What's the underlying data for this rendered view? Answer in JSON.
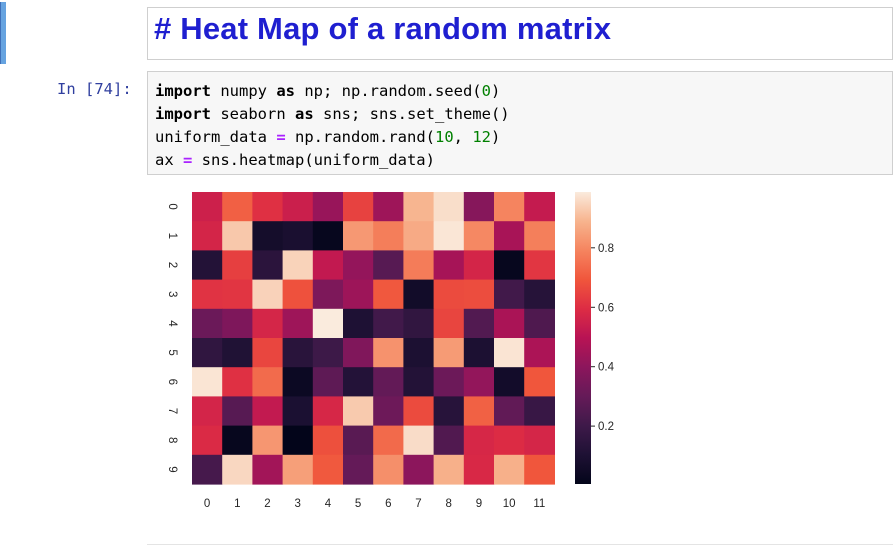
{
  "markdown_cell": {
    "heading": "# Heat Map of a random matrix"
  },
  "code_cell": {
    "prompt": "In [74]:",
    "lines": [
      [
        {
          "t": "import",
          "c": "kw2"
        },
        {
          "t": " numpy ",
          "c": ""
        },
        {
          "t": "as",
          "c": "kw2"
        },
        {
          "t": " np; np.random.seed(",
          "c": ""
        },
        {
          "t": "0",
          "c": "num"
        },
        {
          "t": ")",
          "c": ""
        }
      ],
      [
        {
          "t": "import",
          "c": "kw2"
        },
        {
          "t": " seaborn ",
          "c": ""
        },
        {
          "t": "as",
          "c": "kw2"
        },
        {
          "t": " sns; sns.set_theme()",
          "c": ""
        }
      ],
      [
        {
          "t": "uniform_data ",
          "c": ""
        },
        {
          "t": "=",
          "c": "op"
        },
        {
          "t": " np.random.rand(",
          "c": ""
        },
        {
          "t": "10",
          "c": "num"
        },
        {
          "t": ", ",
          "c": ""
        },
        {
          "t": "12",
          "c": "num"
        },
        {
          "t": ")",
          "c": ""
        }
      ],
      [
        {
          "t": "ax ",
          "c": ""
        },
        {
          "t": "=",
          "c": "op"
        },
        {
          "t": " sns.heatmap(uniform_data)",
          "c": ""
        }
      ]
    ]
  },
  "chart_data": {
    "type": "heatmap",
    "title": "",
    "xlabel": "",
    "ylabel": "",
    "x_ticks": [
      "0",
      "1",
      "2",
      "3",
      "4",
      "5",
      "6",
      "7",
      "8",
      "9",
      "10",
      "11"
    ],
    "y_ticks": [
      "0",
      "1",
      "2",
      "3",
      "4",
      "5",
      "6",
      "7",
      "8",
      "9"
    ],
    "values": [
      [
        0.549,
        0.715,
        0.603,
        0.545,
        0.424,
        0.646,
        0.438,
        0.892,
        0.964,
        0.383,
        0.792,
        0.529
      ],
      [
        0.568,
        0.926,
        0.071,
        0.087,
        0.02,
        0.833,
        0.778,
        0.87,
        0.979,
        0.799,
        0.461,
        0.781
      ],
      [
        0.118,
        0.64,
        0.143,
        0.945,
        0.522,
        0.415,
        0.265,
        0.774,
        0.456,
        0.568,
        0.019,
        0.618
      ],
      [
        0.612,
        0.617,
        0.944,
        0.682,
        0.36,
        0.437,
        0.698,
        0.06,
        0.667,
        0.671,
        0.21,
        0.129
      ],
      [
        0.315,
        0.364,
        0.57,
        0.439,
        0.988,
        0.102,
        0.209,
        0.161,
        0.653,
        0.253,
        0.466,
        0.244
      ],
      [
        0.159,
        0.11,
        0.656,
        0.138,
        0.197,
        0.369,
        0.821,
        0.097,
        0.838,
        0.096,
        0.976,
        0.469
      ],
      [
        0.977,
        0.605,
        0.739,
        0.039,
        0.283,
        0.12,
        0.296,
        0.119,
        0.318,
        0.414,
        0.064,
        0.692
      ],
      [
        0.567,
        0.265,
        0.523,
        0.094,
        0.576,
        0.929,
        0.319,
        0.667,
        0.132,
        0.716,
        0.289,
        0.183
      ],
      [
        0.587,
        0.02,
        0.829,
        0.005,
        0.678,
        0.27,
        0.735,
        0.962,
        0.249,
        0.576,
        0.592,
        0.572
      ],
      [
        0.223,
        0.953,
        0.447,
        0.846,
        0.699,
        0.297,
        0.814,
        0.397,
        0.881,
        0.581,
        0.881,
        0.693
      ]
    ],
    "colorbar": {
      "ticks": [
        "0.2",
        "0.4",
        "0.6",
        "0.8"
      ],
      "tick_values": [
        0.2,
        0.4,
        0.6,
        0.8
      ],
      "vmin": 0.005,
      "vmax": 0.988
    },
    "colormap": "rocket",
    "grid": false
  }
}
